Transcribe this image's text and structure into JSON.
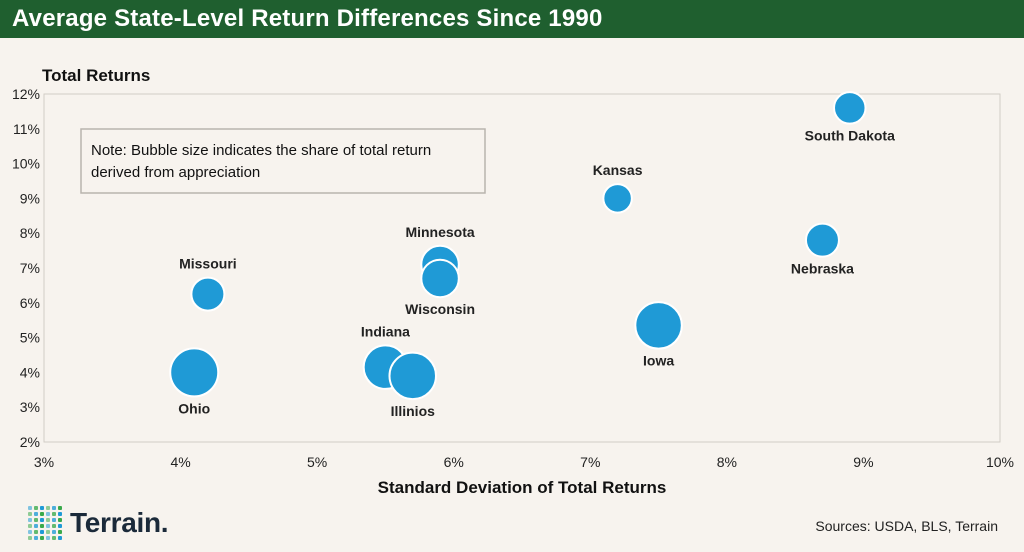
{
  "header": {
    "title": "Average State-Level Return Differences Since 1990"
  },
  "chart_data": {
    "type": "scatter",
    "title": "Average State-Level Return Differences Since 1990",
    "ylabel": "Total Returns",
    "xlabel": "Standard Deviation of Total Returns",
    "xlim": [
      3,
      10
    ],
    "ylim": [
      2,
      12
    ],
    "x_ticks": [
      3,
      4,
      5,
      6,
      7,
      8,
      9,
      10
    ],
    "y_ticks": [
      2,
      3,
      4,
      5,
      6,
      7,
      8,
      9,
      10,
      11,
      12
    ],
    "x_tick_labels": [
      "3%",
      "4%",
      "5%",
      "6%",
      "7%",
      "8%",
      "9%",
      "10%"
    ],
    "y_tick_labels": [
      "2%",
      "3%",
      "4%",
      "5%",
      "6%",
      "7%",
      "8%",
      "9%",
      "10%",
      "11%",
      "12%"
    ],
    "grid": false,
    "note": "Note: Bubble size indicates the share of total return derived from appreciation",
    "note_lines": [
      "Note: Bubble size indicates the share of total return",
      "derived from appreciation"
    ],
    "bubble_color": "#1f9ad6",
    "points": [
      {
        "label": "South Dakota",
        "x": 8.9,
        "y": 11.6,
        "size": 0.45,
        "label_pos": "below"
      },
      {
        "label": "Kansas",
        "x": 7.2,
        "y": 9.0,
        "size": 0.35,
        "label_pos": "above"
      },
      {
        "label": "Nebraska",
        "x": 8.7,
        "y": 7.8,
        "size": 0.5,
        "label_pos": "below"
      },
      {
        "label": "Minnesota",
        "x": 5.9,
        "y": 7.1,
        "size": 0.65,
        "label_pos": "above"
      },
      {
        "label": "Wisconsin",
        "x": 5.9,
        "y": 6.7,
        "size": 0.65,
        "label_pos": "below"
      },
      {
        "label": "Missouri",
        "x": 4.2,
        "y": 6.25,
        "size": 0.5,
        "label_pos": "above"
      },
      {
        "label": "Iowa",
        "x": 7.5,
        "y": 5.35,
        "size": 0.95,
        "label_pos": "below"
      },
      {
        "label": "Indiana",
        "x": 5.5,
        "y": 4.15,
        "size": 0.85,
        "label_pos": "above"
      },
      {
        "label": "Illinios",
        "x": 5.7,
        "y": 3.9,
        "size": 0.95,
        "label_pos": "below"
      },
      {
        "label": "Ohio",
        "x": 4.1,
        "y": 4.0,
        "size": 1.0,
        "label_pos": "below"
      }
    ]
  },
  "footer": {
    "logo_text": "Terrain.",
    "logo_icon": "terrain-dot-grid-icon",
    "sources": "Sources: USDA, BLS, Terrain"
  }
}
